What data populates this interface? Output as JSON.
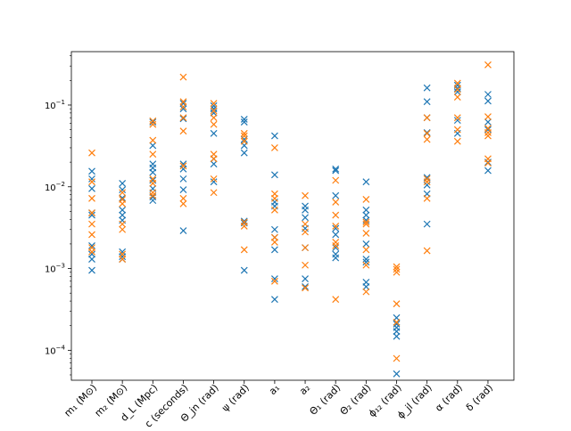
{
  "chart_data": {
    "type": "scatter",
    "title": "",
    "xlabel": "",
    "ylabel": "",
    "yscale": "log",
    "ylim": [
      4.3e-05,
      0.45
    ],
    "grid": false,
    "marker": "x",
    "categories": [
      "m₁ (M⊙)",
      "m₂ (M⊙)",
      "d_L (Mpc)",
      "t_c (seconds)",
      "Θ_jn (rad)",
      "ψ (rad)",
      "a₁",
      "a₂",
      "Θ₁ (rad)",
      "Θ₂ (rad)",
      "ϕ₁₂ (rad)",
      "ϕ_jl (rad)",
      "α (rad)",
      "δ (rad)"
    ],
    "yticks": [
      {
        "value": 0.0001,
        "base": "10",
        "exp": "−4"
      },
      {
        "value": 0.001,
        "base": "10",
        "exp": "−3"
      },
      {
        "value": 0.01,
        "base": "10",
        "exp": "−2"
      },
      {
        "value": 0.1,
        "base": "10",
        "exp": "−1"
      }
    ],
    "colors": {
      "series_a": "#1f77b4",
      "series_b": "#ff7f0e"
    },
    "series": [
      {
        "color": "#1f77b4",
        "values": [
          [
            0.0155,
            0.0125,
            0.0095,
            0.0048,
            0.0045,
            0.0019,
            0.0015,
            0.0013,
            0.00095
          ],
          [
            0.011,
            0.0092,
            0.0073,
            0.0052,
            0.0045,
            0.0039,
            0.0016,
            0.0014,
            0.0013
          ],
          [
            0.062,
            0.032,
            0.019,
            0.017,
            0.015,
            0.012,
            0.0095,
            0.0075,
            0.0068
          ],
          [
            0.105,
            0.09,
            0.068,
            0.019,
            0.0165,
            0.0125,
            0.0092,
            0.0029
          ],
          [
            0.098,
            0.09,
            0.08,
            0.045,
            0.022,
            0.019,
            0.0115
          ],
          [
            0.067,
            0.062,
            0.038,
            0.032,
            0.026,
            0.0038,
            0.0036,
            0.00095
          ],
          [
            0.042,
            0.014,
            0.0065,
            0.0058,
            0.003,
            0.0024,
            0.0017,
            0.00075,
            0.00042
          ],
          [
            0.0058,
            0.0052,
            0.0042,
            0.0031,
            0.0018,
            0.00075,
            0.0006
          ],
          [
            0.0165,
            0.0158,
            0.0078,
            0.0031,
            0.0026,
            0.0018,
            0.0015,
            0.00135
          ],
          [
            0.0115,
            0.0052,
            0.0045,
            0.0039,
            0.002,
            0.0013,
            0.0012,
            0.00068,
            0.0006
          ],
          [
            0.00025,
            0.00021,
            0.00019,
            0.00017,
            0.000148,
            5.15e-05
          ],
          [
            0.162,
            0.11,
            0.07,
            0.046,
            0.013,
            0.0105,
            0.0082,
            0.0035
          ],
          [
            0.175,
            0.16,
            0.145,
            0.065,
            0.045
          ],
          [
            0.135,
            0.112,
            0.062,
            0.05,
            0.02,
            0.0158
          ]
        ]
      },
      {
        "color": "#ff7f0e",
        "values": [
          [
            0.026,
            0.0115,
            0.0072,
            0.0048,
            0.0035,
            0.0026,
            0.0018,
            0.0016
          ],
          [
            0.0085,
            0.007,
            0.0062,
            0.0035,
            0.003,
            0.0015,
            0.0013
          ],
          [
            0.064,
            0.058,
            0.037,
            0.025,
            0.0125,
            0.011,
            0.0085,
            0.0078
          ],
          [
            0.22,
            0.11,
            0.095,
            0.07,
            0.048,
            0.018,
            0.0072,
            0.0062
          ],
          [
            0.105,
            0.085,
            0.07,
            0.058,
            0.025,
            0.022,
            0.0125,
            0.0085
          ],
          [
            0.045,
            0.042,
            0.036,
            0.0037,
            0.0033,
            0.0017
          ],
          [
            0.03,
            0.0082,
            0.0072,
            0.0052,
            0.0024,
            0.0021,
            0.0007
          ],
          [
            0.0078,
            0.0035,
            0.0028,
            0.0018,
            0.0011,
            0.00058
          ],
          [
            0.012,
            0.0065,
            0.0045,
            0.0033,
            0.0021,
            0.0019,
            0.00042
          ],
          [
            0.007,
            0.0037,
            0.0035,
            0.0027,
            0.0017,
            0.0011,
            0.00052
          ],
          [
            0.00105,
            0.00098,
            0.0009,
            0.00037,
            0.00022,
            7.95e-05
          ],
          [
            0.07,
            0.045,
            0.038,
            0.0125,
            0.0115,
            0.0072,
            0.00165
          ],
          [
            0.185,
            0.155,
            0.125,
            0.07,
            0.05,
            0.036
          ],
          [
            0.31,
            0.072,
            0.052,
            0.046,
            0.042,
            0.022,
            0.0195
          ]
        ]
      }
    ]
  }
}
